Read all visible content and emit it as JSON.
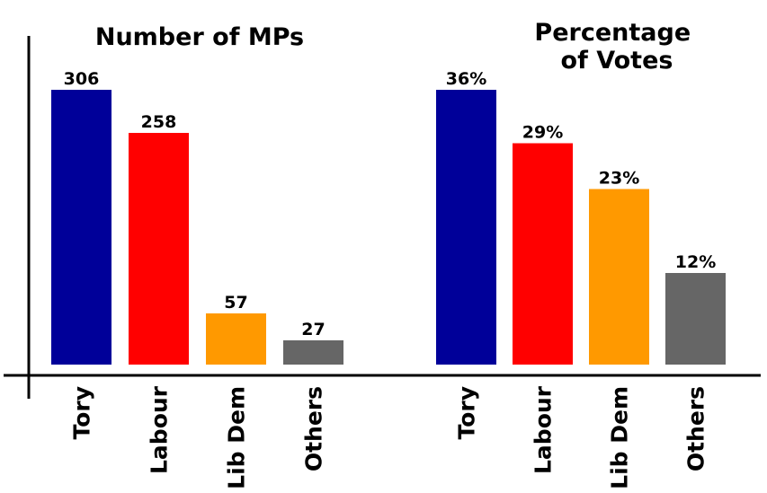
{
  "chart_data": [
    {
      "type": "bar",
      "title": "Number of MPs",
      "categories": [
        "Tory",
        "Labour",
        "Lib Dem",
        "Others"
      ],
      "values": [
        306,
        258,
        57,
        27
      ],
      "value_labels": [
        "306",
        "258",
        "57",
        "27"
      ],
      "colors": [
        "#000099",
        "#ff0000",
        "#ff9900",
        "#666666"
      ],
      "ylim": [
        0,
        306
      ],
      "grid": false
    },
    {
      "type": "bar",
      "title": "Percentage of Votes",
      "title_lines": [
        "Percentage",
        "of Votes"
      ],
      "categories": [
        "Tory",
        "Labour",
        "Lib Dem",
        "Others"
      ],
      "values": [
        36,
        29,
        23,
        12
      ],
      "value_labels": [
        "36%",
        "29%",
        "23%",
        "12%"
      ],
      "colors": [
        "#000099",
        "#ff0000",
        "#ff9900",
        "#666666"
      ],
      "ylim": [
        0,
        36
      ],
      "grid": false
    }
  ]
}
